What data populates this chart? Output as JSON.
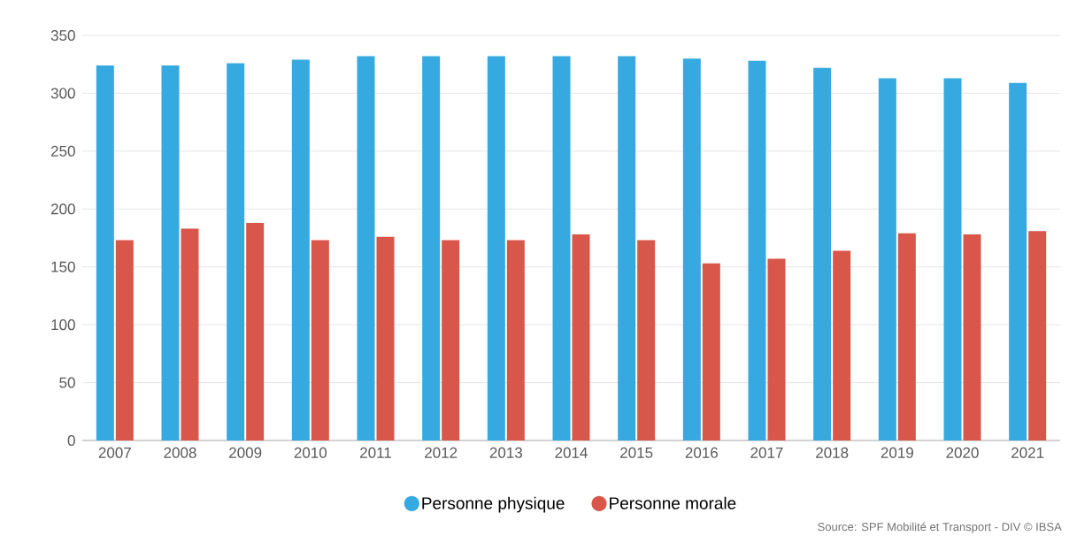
{
  "chart_data": {
    "type": "bar",
    "categories": [
      "2007",
      "2008",
      "2009",
      "2010",
      "2011",
      "2012",
      "2013",
      "2014",
      "2015",
      "2016",
      "2017",
      "2018",
      "2019",
      "2020",
      "2021"
    ],
    "series": [
      {
        "name": "Personne physique",
        "color": "#36a9e1",
        "values": [
          324,
          324,
          326,
          329,
          332,
          332,
          332,
          332,
          332,
          330,
          328,
          322,
          313,
          313,
          309
        ]
      },
      {
        "name": "Personne morale",
        "color": "#d9574a",
        "values": [
          173,
          183,
          188,
          173,
          176,
          173,
          173,
          178,
          173,
          153,
          157,
          164,
          179,
          178,
          181
        ]
      }
    ],
    "ylim": [
      0,
      350
    ],
    "yticks": [
      0,
      50,
      100,
      150,
      200,
      250,
      300,
      350
    ],
    "grid": "y",
    "legend": "bottom",
    "annotations": [
      "Source: SPF Mobilité et Transport - DIV © IBSA"
    ]
  }
}
